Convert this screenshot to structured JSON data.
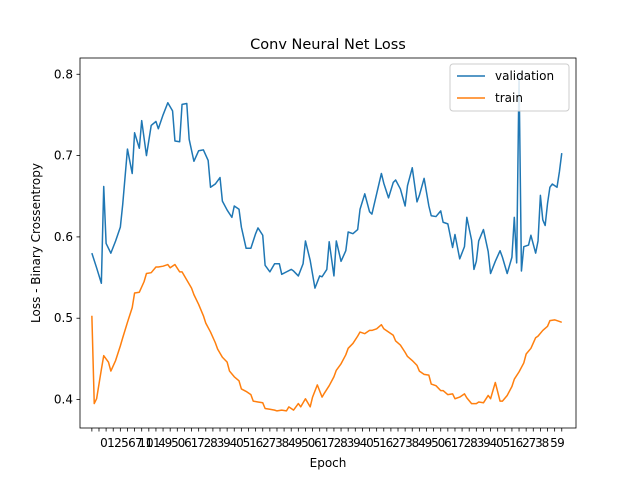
{
  "chart_data": {
    "type": "line",
    "title": "Conv Neural Net Loss",
    "xlabel": "Epoch",
    "ylabel": "Loss - Binary Crossentropy",
    "xlim": [
      -5,
      204
    ],
    "ylim": [
      0.365,
      0.82
    ],
    "yticks": [
      0.4,
      0.5,
      0.6,
      0.7,
      0.8
    ],
    "xticks_first": [
      "0",
      "1",
      "2",
      "5",
      "6",
      "7",
      "10",
      "11"
    ],
    "xticks_last": [
      "5",
      "9"
    ],
    "legend_position": "top-right",
    "series": [
      {
        "name": "validation",
        "color": "#1f77b4",
        "points": [
          [
            0,
            0.58
          ],
          [
            2,
            0.562
          ],
          [
            4,
            0.543
          ],
          [
            5,
            0.662
          ],
          [
            6,
            0.592
          ],
          [
            8,
            0.58
          ],
          [
            10,
            0.595
          ],
          [
            12,
            0.612
          ],
          [
            13,
            0.64
          ],
          [
            15,
            0.708
          ],
          [
            17,
            0.678
          ],
          [
            18,
            0.728
          ],
          [
            20,
            0.709
          ],
          [
            21,
            0.743
          ],
          [
            23,
            0.7
          ],
          [
            25,
            0.737
          ],
          [
            27,
            0.742
          ],
          [
            28,
            0.733
          ],
          [
            30,
            0.75
          ],
          [
            32,
            0.765
          ],
          [
            34,
            0.755
          ],
          [
            35,
            0.718
          ],
          [
            37,
            0.717
          ],
          [
            38,
            0.763
          ],
          [
            40,
            0.764
          ],
          [
            41,
            0.72
          ],
          [
            43,
            0.693
          ],
          [
            45,
            0.706
          ],
          [
            47,
            0.707
          ],
          [
            49,
            0.694
          ],
          [
            50,
            0.661
          ],
          [
            52,
            0.665
          ],
          [
            54,
            0.673
          ],
          [
            55,
            0.644
          ],
          [
            57,
            0.633
          ],
          [
            59,
            0.624
          ],
          [
            60,
            0.638
          ],
          [
            62,
            0.634
          ],
          [
            63,
            0.612
          ],
          [
            65,
            0.586
          ],
          [
            67,
            0.586
          ],
          [
            69,
            0.604
          ],
          [
            70,
            0.611
          ],
          [
            72,
            0.602
          ],
          [
            73,
            0.565
          ],
          [
            75,
            0.557
          ],
          [
            77,
            0.567
          ],
          [
            79,
            0.567
          ],
          [
            80,
            0.554
          ],
          [
            82,
            0.557
          ],
          [
            84,
            0.56
          ],
          [
            85,
            0.558
          ],
          [
            87,
            0.552
          ],
          [
            89,
            0.567
          ],
          [
            90,
            0.595
          ],
          [
            92,
            0.571
          ],
          [
            94,
            0.537
          ],
          [
            96,
            0.552
          ],
          [
            97,
            0.551
          ],
          [
            99,
            0.56
          ],
          [
            100,
            0.594
          ],
          [
            102,
            0.552
          ],
          [
            103,
            0.595
          ],
          [
            105,
            0.57
          ],
          [
            107,
            0.583
          ],
          [
            108,
            0.606
          ],
          [
            110,
            0.604
          ],
          [
            112,
            0.609
          ],
          [
            113,
            0.634
          ],
          [
            115,
            0.653
          ],
          [
            117,
            0.631
          ],
          [
            118,
            0.628
          ],
          [
            120,
            0.653
          ],
          [
            122,
            0.678
          ],
          [
            123,
            0.666
          ],
          [
            125,
            0.648
          ],
          [
            127,
            0.667
          ],
          [
            128,
            0.67
          ],
          [
            130,
            0.659
          ],
          [
            132,
            0.638
          ],
          [
            133,
            0.663
          ],
          [
            135,
            0.685
          ],
          [
            137,
            0.643
          ],
          [
            138,
            0.651
          ],
          [
            140,
            0.672
          ],
          [
            142,
            0.638
          ],
          [
            143,
            0.626
          ],
          [
            145,
            0.625
          ],
          [
            147,
            0.632
          ],
          [
            148,
            0.618
          ],
          [
            150,
            0.616
          ],
          [
            152,
            0.587
          ],
          [
            153,
            0.603
          ],
          [
            155,
            0.573
          ],
          [
            157,
            0.588
          ],
          [
            158,
            0.624
          ],
          [
            160,
            0.596
          ],
          [
            161,
            0.56
          ],
          [
            162,
            0.57
          ],
          [
            163,
            0.595
          ],
          [
            165,
            0.609
          ],
          [
            167,
            0.582
          ],
          [
            168,
            0.555
          ],
          [
            170,
            0.57
          ],
          [
            172,
            0.583
          ],
          [
            173,
            0.575
          ],
          [
            175,
            0.555
          ],
          [
            177,
            0.575
          ],
          [
            178,
            0.624
          ],
          [
            179,
            0.568
          ],
          [
            180,
            0.8
          ],
          [
            181,
            0.558
          ],
          [
            182,
            0.588
          ],
          [
            184,
            0.59
          ],
          [
            185,
            0.602
          ],
          [
            187,
            0.58
          ],
          [
            188,
            0.595
          ],
          [
            189,
            0.651
          ],
          [
            190,
            0.621
          ],
          [
            191,
            0.614
          ],
          [
            192,
            0.641
          ],
          [
            193,
            0.661
          ],
          [
            194,
            0.665
          ],
          [
            195,
            0.663
          ],
          [
            196,
            0.661
          ],
          [
            197,
            0.68
          ],
          [
            198,
            0.703
          ]
        ]
      },
      {
        "name": "train",
        "color": "#ff7f0e",
        "points": [
          [
            0,
            0.503
          ],
          [
            1,
            0.395
          ],
          [
            2,
            0.401
          ],
          [
            4,
            0.437
          ],
          [
            5,
            0.454
          ],
          [
            7,
            0.446
          ],
          [
            8,
            0.435
          ],
          [
            10,
            0.448
          ],
          [
            12,
            0.466
          ],
          [
            13,
            0.476
          ],
          [
            15,
            0.495
          ],
          [
            17,
            0.513
          ],
          [
            18,
            0.531
          ],
          [
            20,
            0.532
          ],
          [
            22,
            0.545
          ],
          [
            23,
            0.555
          ],
          [
            25,
            0.556
          ],
          [
            27,
            0.563
          ],
          [
            28,
            0.563
          ],
          [
            30,
            0.564
          ],
          [
            32,
            0.566
          ],
          [
            33,
            0.562
          ],
          [
            35,
            0.566
          ],
          [
            37,
            0.557
          ],
          [
            38,
            0.557
          ],
          [
            40,
            0.547
          ],
          [
            42,
            0.537
          ],
          [
            43,
            0.529
          ],
          [
            45,
            0.517
          ],
          [
            47,
            0.503
          ],
          [
            48,
            0.494
          ],
          [
            50,
            0.483
          ],
          [
            52,
            0.47
          ],
          [
            53,
            0.462
          ],
          [
            55,
            0.452
          ],
          [
            57,
            0.446
          ],
          [
            58,
            0.435
          ],
          [
            60,
            0.428
          ],
          [
            62,
            0.423
          ],
          [
            63,
            0.413
          ],
          [
            65,
            0.41
          ],
          [
            67,
            0.406
          ],
          [
            68,
            0.398
          ],
          [
            70,
            0.397
          ],
          [
            72,
            0.396
          ],
          [
            73,
            0.389
          ],
          [
            75,
            0.388
          ],
          [
            77,
            0.387
          ],
          [
            78,
            0.386
          ],
          [
            80,
            0.387
          ],
          [
            82,
            0.386
          ],
          [
            83,
            0.391
          ],
          [
            85,
            0.387
          ],
          [
            87,
            0.395
          ],
          [
            88,
            0.391
          ],
          [
            90,
            0.401
          ],
          [
            92,
            0.391
          ],
          [
            93,
            0.403
          ],
          [
            95,
            0.418
          ],
          [
            97,
            0.403
          ],
          [
            98,
            0.408
          ],
          [
            100,
            0.417
          ],
          [
            102,
            0.428
          ],
          [
            103,
            0.436
          ],
          [
            105,
            0.444
          ],
          [
            107,
            0.455
          ],
          [
            108,
            0.463
          ],
          [
            110,
            0.469
          ],
          [
            112,
            0.478
          ],
          [
            113,
            0.483
          ],
          [
            115,
            0.481
          ],
          [
            117,
            0.485
          ],
          [
            118,
            0.485
          ],
          [
            120,
            0.487
          ],
          [
            122,
            0.492
          ],
          [
            123,
            0.487
          ],
          [
            125,
            0.483
          ],
          [
            127,
            0.479
          ],
          [
            128,
            0.472
          ],
          [
            130,
            0.467
          ],
          [
            132,
            0.458
          ],
          [
            133,
            0.453
          ],
          [
            135,
            0.448
          ],
          [
            137,
            0.442
          ],
          [
            138,
            0.435
          ],
          [
            140,
            0.431
          ],
          [
            142,
            0.43
          ],
          [
            143,
            0.419
          ],
          [
            145,
            0.417
          ],
          [
            147,
            0.411
          ],
          [
            148,
            0.411
          ],
          [
            150,
            0.406
          ],
          [
            152,
            0.407
          ],
          [
            153,
            0.401
          ],
          [
            155,
            0.403
          ],
          [
            157,
            0.407
          ],
          [
            158,
            0.402
          ],
          [
            160,
            0.395
          ],
          [
            162,
            0.395
          ],
          [
            163,
            0.397
          ],
          [
            165,
            0.396
          ],
          [
            167,
            0.405
          ],
          [
            168,
            0.401
          ],
          [
            170,
            0.421
          ],
          [
            172,
            0.398
          ],
          [
            173,
            0.398
          ],
          [
            175,
            0.405
          ],
          [
            177,
            0.416
          ],
          [
            178,
            0.425
          ],
          [
            180,
            0.434
          ],
          [
            182,
            0.445
          ],
          [
            183,
            0.456
          ],
          [
            185,
            0.463
          ],
          [
            187,
            0.476
          ],
          [
            188,
            0.478
          ],
          [
            190,
            0.485
          ],
          [
            192,
            0.49
          ],
          [
            193,
            0.497
          ],
          [
            195,
            0.498
          ],
          [
            197,
            0.496
          ],
          [
            198,
            0.495
          ]
        ]
      }
    ]
  }
}
